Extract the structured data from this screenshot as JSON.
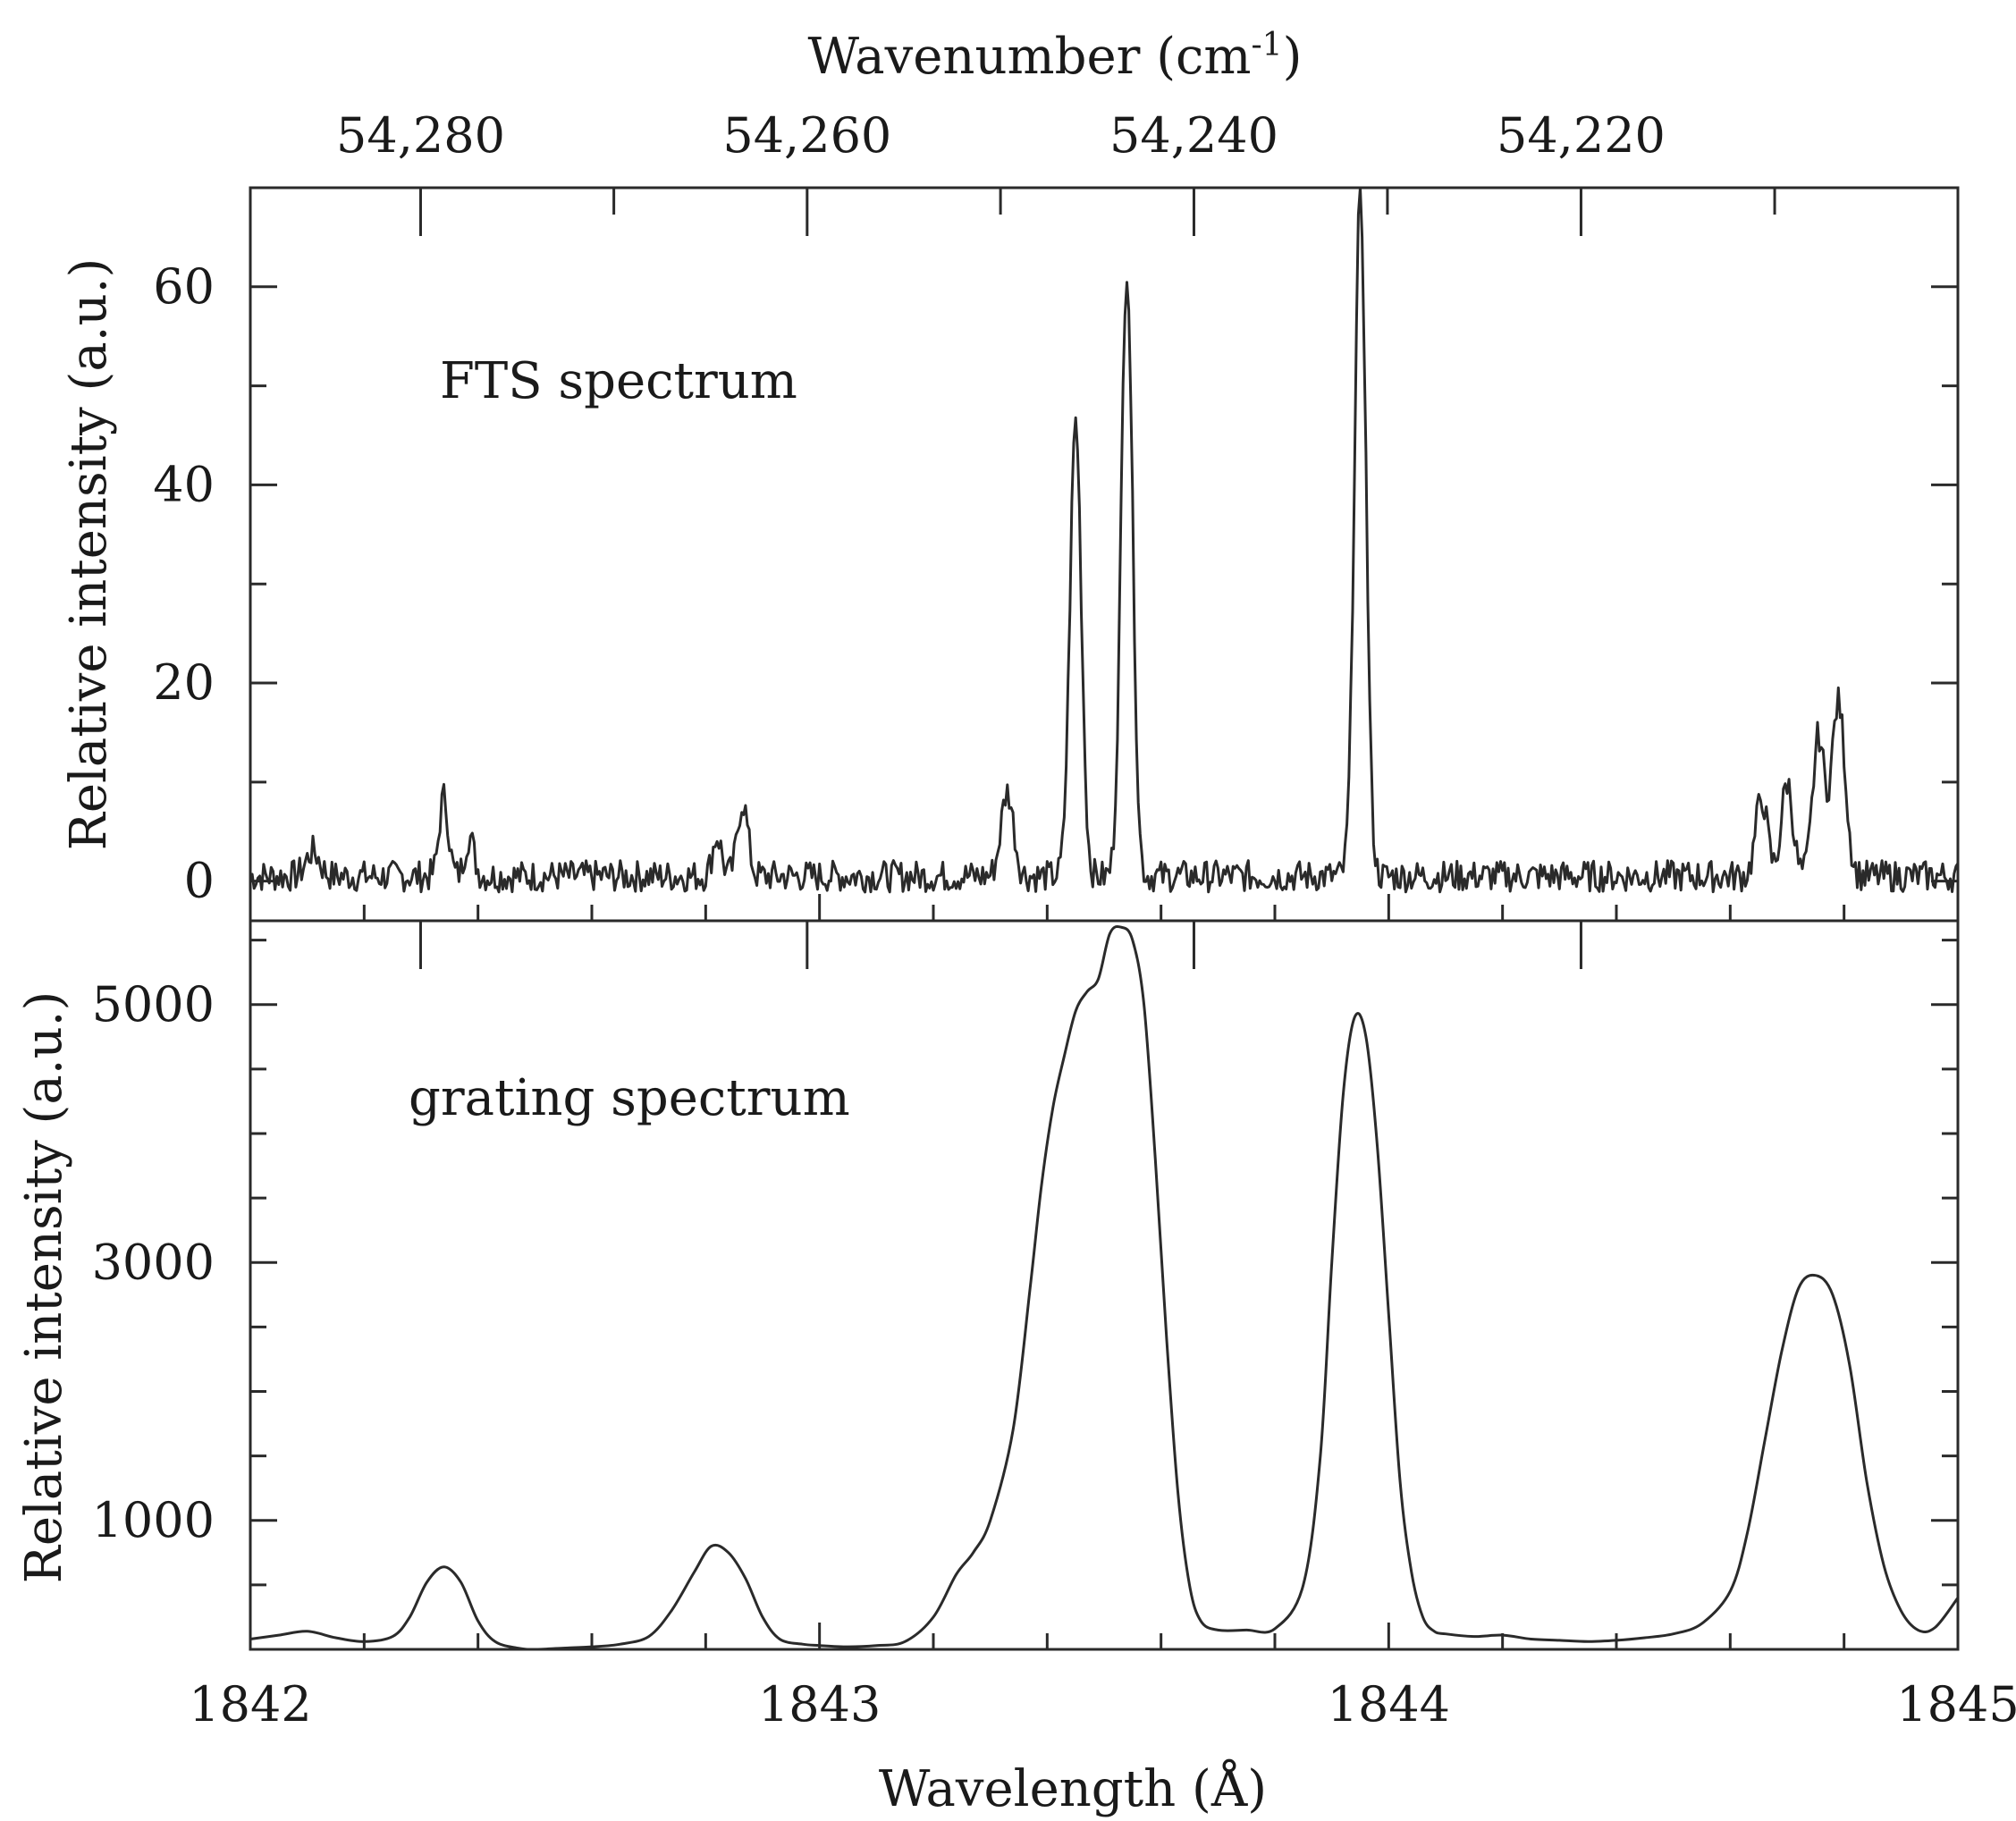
{
  "chart_data": [
    {
      "type": "line",
      "panel": "top",
      "annotation": "FTS spectrum",
      "ylabel": "Relative intensity (a.u.)",
      "ylim": [
        -4,
        70
      ],
      "yticks": [
        0,
        20,
        40,
        60
      ],
      "yminor": [
        10,
        30,
        50
      ],
      "top_axis": {
        "label": "Wavenumber (cm",
        "label_sup": "-1",
        "label_close": ")",
        "ticks": [
          {
            "value": 54280,
            "label": "54,280"
          },
          {
            "value": 54260,
            "label": "54,260"
          },
          {
            "value": 54240,
            "label": "54,240"
          },
          {
            "value": 54220,
            "label": "54,220"
          }
        ],
        "minor": [
          54290,
          54270,
          54250,
          54230,
          54210
        ]
      },
      "xlim": [
        1842,
        1845
      ],
      "baseline": 0.5,
      "noise_amplitude": 1.6,
      "peaks": [
        {
          "x": 1842.11,
          "height": 2.5,
          "width": 0.012
        },
        {
          "x": 1842.34,
          "height": 8.0,
          "width": 0.008
        },
        {
          "x": 1842.385,
          "height": 4.0,
          "width": 0.008
        },
        {
          "x": 1842.82,
          "height": 4.0,
          "width": 0.008
        },
        {
          "x": 1842.865,
          "height": 7.5,
          "width": 0.009
        },
        {
          "x": 1843.33,
          "height": 8.5,
          "width": 0.011
        },
        {
          "x": 1843.45,
          "height": 46,
          "width": 0.01
        },
        {
          "x": 1843.54,
          "height": 61.5,
          "width": 0.01
        },
        {
          "x": 1843.95,
          "height": 69,
          "width": 0.01
        },
        {
          "x": 1844.655,
          "height": 8.0,
          "width": 0.01
        },
        {
          "x": 1844.7,
          "height": 9.5,
          "width": 0.01
        },
        {
          "x": 1844.755,
          "height": 14.0,
          "width": 0.01
        },
        {
          "x": 1844.79,
          "height": 17.5,
          "width": 0.012
        }
      ]
    },
    {
      "type": "line",
      "panel": "bottom",
      "annotation": "grating spectrum",
      "xlabel": "Wavelength (Å)",
      "ylabel": "Relative intensity (a.u.)",
      "xlim": [
        1842,
        1845
      ],
      "ylim": [
        0,
        5650
      ],
      "yticks": [
        1000,
        3000,
        5000
      ],
      "yminor": [
        500,
        1500,
        2000,
        2500,
        3500,
        4000,
        4500,
        5500
      ],
      "xticks": [
        {
          "value": 1842,
          "label": "1842"
        },
        {
          "value": 1843,
          "label": "1843"
        },
        {
          "value": 1844,
          "label": "1844"
        },
        {
          "value": 1845,
          "label": "1845"
        }
      ],
      "xminor": [
        1842.2,
        1842.4,
        1842.6,
        1842.8,
        1843.2,
        1843.4,
        1843.6,
        1843.8,
        1844.2,
        1844.4,
        1844.6,
        1844.8
      ],
      "x": [
        1842.0,
        1842.05,
        1842.1,
        1842.15,
        1842.2,
        1842.25,
        1842.28,
        1842.31,
        1842.34,
        1842.37,
        1842.4,
        1842.43,
        1842.47,
        1842.5,
        1842.55,
        1842.6,
        1842.65,
        1842.7,
        1842.74,
        1842.78,
        1842.81,
        1842.84,
        1842.87,
        1842.9,
        1842.93,
        1842.97,
        1843.0,
        1843.05,
        1843.1,
        1843.15,
        1843.2,
        1843.24,
        1843.27,
        1843.3,
        1843.34,
        1843.37,
        1843.39,
        1843.41,
        1843.43,
        1843.45,
        1843.47,
        1843.49,
        1843.51,
        1843.53,
        1843.55,
        1843.57,
        1843.59,
        1843.61,
        1843.63,
        1843.65,
        1843.67,
        1843.7,
        1843.75,
        1843.8,
        1843.85,
        1843.88,
        1843.9,
        1843.92,
        1843.94,
        1843.96,
        1843.98,
        1844.0,
        1844.02,
        1844.04,
        1844.06,
        1844.08,
        1844.1,
        1844.15,
        1844.2,
        1844.25,
        1844.3,
        1844.35,
        1844.4,
        1844.45,
        1844.5,
        1844.55,
        1844.6,
        1844.63,
        1844.66,
        1844.69,
        1844.72,
        1844.75,
        1844.78,
        1844.81,
        1844.84,
        1844.87,
        1844.9,
        1844.93,
        1844.96,
        1845.0
      ],
      "values": [
        80,
        110,
        140,
        90,
        60,
        100,
        250,
        520,
        640,
        520,
        220,
        60,
        10,
        0,
        10,
        20,
        40,
        100,
        300,
        600,
        800,
        750,
        550,
        250,
        80,
        40,
        30,
        20,
        30,
        60,
        250,
        580,
        750,
        1000,
        1700,
        2800,
        3600,
        4200,
        4600,
        4950,
        5100,
        5200,
        5550,
        5600,
        5500,
        5000,
        3800,
        2400,
        1200,
        500,
        220,
        150,
        150,
        160,
        500,
        1500,
        3000,
        4300,
        4900,
        4750,
        3900,
        2600,
        1300,
        600,
        250,
        140,
        120,
        100,
        110,
        80,
        70,
        60,
        70,
        90,
        120,
        200,
        450,
        900,
        1600,
        2300,
        2800,
        2900,
        2750,
        2200,
        1300,
        650,
        300,
        150,
        170,
        400
      ]
    }
  ]
}
